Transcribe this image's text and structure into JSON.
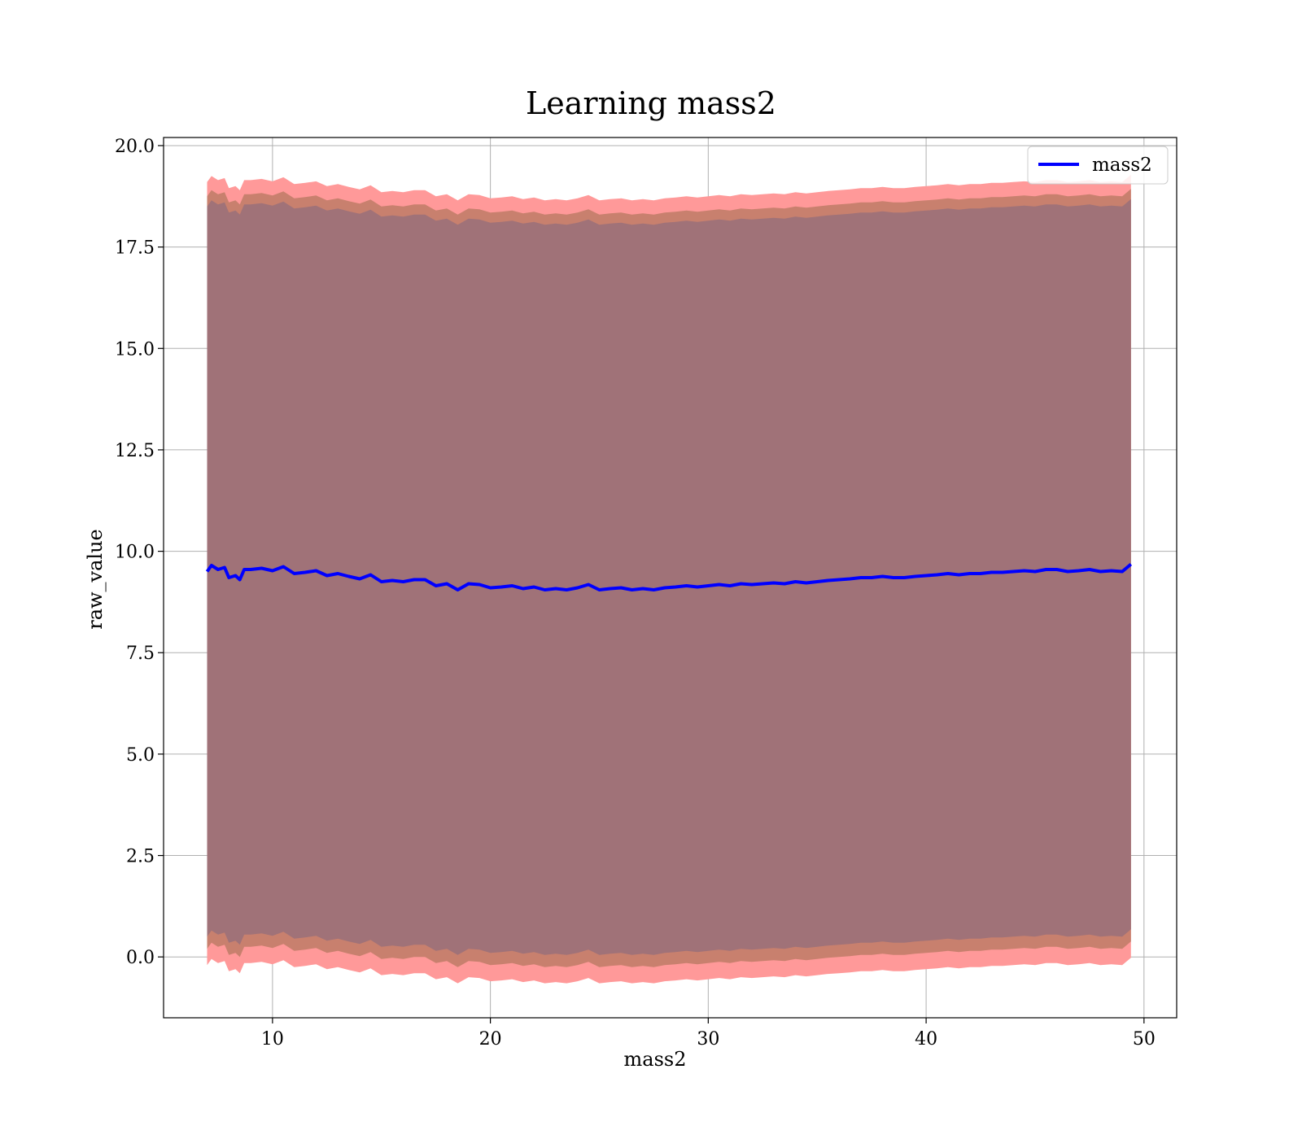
{
  "chart_data": {
    "type": "line",
    "title": "Learning mass2",
    "xlabel": "mass2",
    "ylabel": "raw_value",
    "xlim": [
      5,
      51.5
    ],
    "ylim": [
      -1.5,
      20.2
    ],
    "xticks": [
      10,
      20,
      30,
      40,
      50
    ],
    "yticks": [
      0.0,
      2.5,
      5.0,
      7.5,
      10.0,
      12.5,
      15.0,
      17.5,
      20.0
    ],
    "xtick_labels": [
      "10",
      "20",
      "30",
      "40",
      "50"
    ],
    "ytick_labels": [
      "0.0",
      "2.5",
      "5.0",
      "7.5",
      "10.0",
      "12.5",
      "15.0",
      "17.5",
      "20.0"
    ],
    "grid": true,
    "legend_position": "top-right",
    "colors": {
      "line": "#0000ff",
      "band_outer": "#ff9999",
      "band_middle": "#c8806e",
      "band_inner": "#a07278",
      "grid": "#b0b0b0"
    },
    "series": [
      {
        "name": "mass2",
        "x": [
          7.0,
          7.2,
          7.5,
          7.8,
          8.0,
          8.3,
          8.5,
          8.7,
          9.0,
          9.5,
          10.0,
          10.5,
          11.0,
          11.5,
          12.0,
          12.5,
          13.0,
          13.5,
          14.0,
          14.5,
          15.0,
          15.5,
          16.0,
          16.5,
          17.0,
          17.5,
          18.0,
          18.5,
          19.0,
          19.5,
          20.0,
          20.5,
          21.0,
          21.5,
          22.0,
          22.5,
          23.0,
          23.5,
          24.0,
          24.5,
          25.0,
          25.5,
          26.0,
          26.5,
          27.0,
          27.5,
          28.0,
          28.5,
          29.0,
          29.5,
          30.0,
          30.5,
          31.0,
          31.5,
          32.0,
          32.5,
          33.0,
          33.5,
          34.0,
          34.5,
          35.0,
          35.5,
          36.0,
          36.5,
          37.0,
          37.5,
          38.0,
          38.5,
          39.0,
          39.5,
          40.0,
          40.5,
          41.0,
          41.5,
          42.0,
          42.5,
          43.0,
          43.5,
          44.0,
          44.5,
          45.0,
          45.5,
          46.0,
          46.5,
          47.0,
          47.5,
          48.0,
          48.5,
          49.0,
          49.4
        ],
        "y": [
          9.5,
          9.65,
          9.55,
          9.6,
          9.35,
          9.4,
          9.3,
          9.55,
          9.55,
          9.58,
          9.52,
          9.62,
          9.45,
          9.48,
          9.52,
          9.4,
          9.45,
          9.38,
          9.32,
          9.42,
          9.25,
          9.28,
          9.25,
          9.3,
          9.3,
          9.15,
          9.2,
          9.05,
          9.2,
          9.18,
          9.1,
          9.12,
          9.15,
          9.08,
          9.12,
          9.05,
          9.08,
          9.05,
          9.1,
          9.18,
          9.05,
          9.08,
          9.1,
          9.05,
          9.08,
          9.05,
          9.1,
          9.12,
          9.15,
          9.12,
          9.15,
          9.18,
          9.15,
          9.2,
          9.18,
          9.2,
          9.22,
          9.2,
          9.25,
          9.22,
          9.25,
          9.28,
          9.3,
          9.32,
          9.35,
          9.35,
          9.38,
          9.35,
          9.35,
          9.38,
          9.4,
          9.42,
          9.45,
          9.42,
          9.45,
          9.45,
          9.48,
          9.48,
          9.5,
          9.52,
          9.5,
          9.55,
          9.55,
          9.5,
          9.52,
          9.55,
          9.5,
          9.52,
          9.5,
          9.68
        ]
      }
    ],
    "bands": [
      {
        "low_offset": -9.7,
        "high_offset": 9.6
      },
      {
        "low_offset": -9.3,
        "high_offset": 9.25
      },
      {
        "low_offset": -9.0,
        "high_offset": 9.0
      }
    ]
  }
}
